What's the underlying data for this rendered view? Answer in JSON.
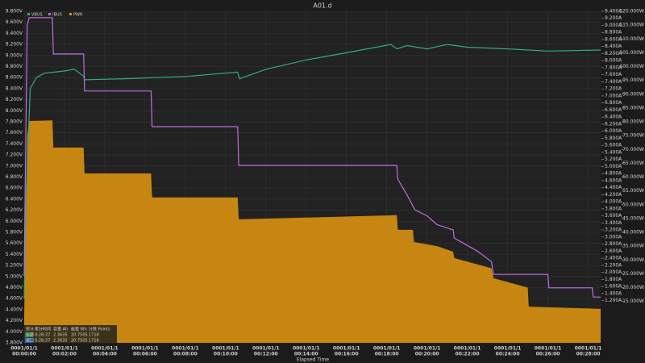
{
  "chart_data": {
    "type": "line",
    "title": "A01.d",
    "x_label": "Elapsed Time",
    "x_date": "0001/01/1",
    "xlim": [
      0,
      28.62
    ],
    "xticks": [
      {
        "value": 0,
        "label": "00:00:00"
      },
      {
        "value": 2,
        "label": "00:02:00"
      },
      {
        "value": 4,
        "label": "00:04:00"
      },
      {
        "value": 6,
        "label": "00:06:00"
      },
      {
        "value": 8,
        "label": "00:08:00"
      },
      {
        "value": 10,
        "label": "00:10:00"
      },
      {
        "value": 12,
        "label": "00:12:00"
      },
      {
        "value": 14,
        "label": "00:14:00"
      },
      {
        "value": 16,
        "label": "00:16:00"
      },
      {
        "value": 18,
        "label": "00:18:00"
      },
      {
        "value": 20,
        "label": "00:20:00"
      },
      {
        "value": 22,
        "label": "00:22:00"
      },
      {
        "value": 24,
        "label": "00:24:00"
      },
      {
        "value": 26,
        "label": "00:26:00"
      },
      {
        "value": 28,
        "label": "00:28:00"
      }
    ],
    "ylim": [
      3.8,
      9.8
    ],
    "yticks": [
      {
        "value": 3.8,
        "label": "3.800V"
      },
      {
        "value": 4.0,
        "label": "4.000V"
      },
      {
        "value": 4.2,
        "label": "4.200V"
      },
      {
        "value": 4.4,
        "label": "4.400V"
      },
      {
        "value": 4.6,
        "label": "4.600V"
      },
      {
        "value": 4.8,
        "label": "4.800V"
      },
      {
        "value": 5.0,
        "label": "5.000V"
      },
      {
        "value": 5.2,
        "label": "5.200V"
      },
      {
        "value": 5.4,
        "label": "5.400V"
      },
      {
        "value": 5.6,
        "label": "5.600V"
      },
      {
        "value": 5.8,
        "label": "5.800V"
      },
      {
        "value": 6.0,
        "label": "6.000V"
      },
      {
        "value": 6.2,
        "label": "6.200V"
      },
      {
        "value": 6.4,
        "label": "6.400V"
      },
      {
        "value": 6.6,
        "label": "6.600V"
      },
      {
        "value": 6.8,
        "label": "6.800V"
      },
      {
        "value": 7.0,
        "label": "7.000V"
      },
      {
        "value": 7.2,
        "label": "7.200V"
      },
      {
        "value": 7.4,
        "label": "7.400V"
      },
      {
        "value": 7.6,
        "label": "7.600V"
      },
      {
        "value": 7.8,
        "label": "7.800V"
      },
      {
        "value": 8.0,
        "label": "8.000V"
      },
      {
        "value": 8.2,
        "label": "8.200V"
      },
      {
        "value": 8.4,
        "label": "8.400V"
      },
      {
        "value": 8.6,
        "label": "8.600V"
      },
      {
        "value": 8.8,
        "label": "8.800V"
      },
      {
        "value": 9.0,
        "label": "9.000V"
      },
      {
        "value": 9.2,
        "label": "9.200V"
      },
      {
        "value": 9.4,
        "label": "9.400V"
      },
      {
        "value": 9.6,
        "label": "9.600V"
      },
      {
        "value": 9.8,
        "label": "9.800V"
      }
    ],
    "y2lim": [
      0,
      9.4
    ],
    "y2ticks": [
      {
        "value": 1.2,
        "label": "1.200A"
      },
      {
        "value": 1.4,
        "label": "1.400A"
      },
      {
        "value": 1.6,
        "label": "1.600A"
      },
      {
        "value": 1.8,
        "label": "1.800A"
      },
      {
        "value": 2.0,
        "label": "2.000A"
      },
      {
        "value": 2.2,
        "label": "2.200A"
      },
      {
        "value": 2.4,
        "label": "2.400A"
      },
      {
        "value": 2.6,
        "label": "2.600A"
      },
      {
        "value": 2.8,
        "label": "2.800A"
      },
      {
        "value": 3.0,
        "label": "3.000A"
      },
      {
        "value": 3.2,
        "label": "3.200A"
      },
      {
        "value": 3.4,
        "label": "3.400A"
      },
      {
        "value": 3.6,
        "label": "3.600A"
      },
      {
        "value": 3.8,
        "label": "3.800A"
      },
      {
        "value": 4.0,
        "label": "4.000A"
      },
      {
        "value": 4.2,
        "label": "4.200A"
      },
      {
        "value": 4.4,
        "label": "4.400A"
      },
      {
        "value": 4.6,
        "label": "4.600A"
      },
      {
        "value": 4.8,
        "label": "4.800A"
      },
      {
        "value": 5.0,
        "label": "5.000A"
      },
      {
        "value": 5.2,
        "label": "5.200A"
      },
      {
        "value": 5.4,
        "label": "5.400A"
      },
      {
        "value": 5.6,
        "label": "5.600A"
      },
      {
        "value": 5.8,
        "label": "5.800A"
      },
      {
        "value": 6.0,
        "label": "6.000A"
      },
      {
        "value": 6.2,
        "label": "6.200A"
      },
      {
        "value": 6.4,
        "label": "6.400A"
      },
      {
        "value": 6.6,
        "label": "6.600A"
      },
      {
        "value": 6.8,
        "label": "6.800A"
      },
      {
        "value": 7.0,
        "label": "7.000A"
      },
      {
        "value": 7.2,
        "label": "7.200A"
      },
      {
        "value": 7.4,
        "label": "7.400A"
      },
      {
        "value": 7.6,
        "label": "7.600A"
      },
      {
        "value": 7.8,
        "label": "7.800A"
      },
      {
        "value": 8.0,
        "label": "8.000A"
      },
      {
        "value": 8.2,
        "label": "8.200A"
      },
      {
        "value": 8.4,
        "label": "8.400A"
      },
      {
        "value": 8.6,
        "label": "8.600A"
      },
      {
        "value": 8.8,
        "label": "8.800A"
      },
      {
        "value": 9.0,
        "label": "9.000A"
      },
      {
        "value": 9.2,
        "label": "9.200A"
      },
      {
        "value": 9.4,
        "label": "9.400A"
      }
    ],
    "y3lim": [
      0,
      120
    ],
    "y3ticks": [
      {
        "value": 15,
        "label": "15.000W"
      },
      {
        "value": 20,
        "label": "20.000W"
      },
      {
        "value": 25,
        "label": "25.000W"
      },
      {
        "value": 30,
        "label": "30.000W"
      },
      {
        "value": 35,
        "label": "35.000W"
      },
      {
        "value": 40,
        "label": "40.000W"
      },
      {
        "value": 45,
        "label": "45.000W"
      },
      {
        "value": 50,
        "label": "50.000W"
      },
      {
        "value": 55,
        "label": "55.000W"
      },
      {
        "value": 60,
        "label": "60.000W"
      },
      {
        "value": 65,
        "label": "65.000W"
      },
      {
        "value": 70,
        "label": "70.000W"
      },
      {
        "value": 75,
        "label": "75.000W"
      },
      {
        "value": 80,
        "label": "80.000W"
      },
      {
        "value": 85,
        "label": "85.000W"
      },
      {
        "value": 90,
        "label": "90.000W"
      },
      {
        "value": 95,
        "label": "95.000W"
      },
      {
        "value": 100,
        "label": "100.000W"
      },
      {
        "value": 105,
        "label": "105.000W"
      },
      {
        "value": 110,
        "label": "110.000W"
      },
      {
        "value": 115,
        "label": "115.000W"
      },
      {
        "value": 120,
        "label": "120.000W"
      }
    ],
    "grid": true,
    "legend": "top-left",
    "series": [
      {
        "name": "PWR",
        "color": "#d9900f",
        "axis": "y3",
        "area": true,
        "x": [
          0,
          0.15,
          0.25,
          1.4,
          1.45,
          2.95,
          3.0,
          6.3,
          6.35,
          10.6,
          10.65,
          18.5,
          18.55,
          19.3,
          19.35,
          20.5,
          21.3,
          21.35,
          23.2,
          23.3,
          25.0,
          25.05,
          28.62
        ],
        "values": [
          9,
          75,
          80.3,
          80.5,
          70.7,
          70.7,
          61.3,
          61.3,
          52.6,
          52.6,
          44.7,
          46.2,
          40.9,
          40.9,
          36.5,
          35,
          33,
          30.7,
          27,
          23.4,
          20,
          13.1,
          12.3
        ]
      },
      {
        "name": "VBUS",
        "color": "#2fae7a",
        "axis": "y",
        "x": [
          0,
          0.1,
          0.3,
          0.6,
          1,
          1.5,
          2,
          2.5,
          2.96,
          3.0,
          5,
          8,
          10.6,
          10.65,
          10.7,
          12,
          14,
          16,
          18.2,
          18.5,
          19,
          20,
          21,
          22,
          24,
          26,
          28.62
        ],
        "values": [
          4.6,
          6.5,
          8.4,
          8.6,
          8.68,
          8.7,
          8.72,
          8.75,
          8.62,
          8.56,
          8.58,
          8.62,
          8.7,
          8.62,
          8.58,
          8.75,
          8.92,
          9.05,
          9.2,
          9.12,
          9.18,
          9.12,
          9.2,
          9.15,
          9.12,
          9.08,
          9.1
        ]
      },
      {
        "name": "IBUS",
        "color": "#c06ee0",
        "axis": "y2",
        "x": [
          0,
          0.15,
          0.25,
          1.4,
          1.45,
          2.95,
          3.0,
          6.3,
          6.35,
          10.6,
          10.65,
          18.5,
          18.55,
          19.0,
          19.4,
          20.0,
          20.5,
          21.3,
          21.35,
          22.5,
          23.2,
          23.3,
          26.0,
          26.05,
          28.2,
          28.25,
          28.62
        ],
        "values": [
          1.9,
          9.0,
          9.22,
          9.22,
          8.19,
          8.19,
          7.14,
          7.14,
          6.13,
          6.13,
          5.03,
          5.03,
          4.64,
          4.2,
          3.77,
          3.6,
          3.35,
          3.2,
          2.97,
          2.6,
          2.3,
          1.94,
          1.94,
          1.56,
          1.56,
          1.3,
          1.3
        ]
      }
    ]
  },
  "stats_table": {
    "header": [
      "统计",
      "累计时间",
      "容量 Ah",
      "能量 Wh",
      "计数 Points"
    ],
    "rows": [
      [
        "全部",
        "0:28:37",
        "2.3635",
        "20.7505",
        "1718"
      ],
      [
        "窗口",
        "0:28:37",
        "2.3635",
        "20.7505",
        "1718"
      ]
    ]
  }
}
